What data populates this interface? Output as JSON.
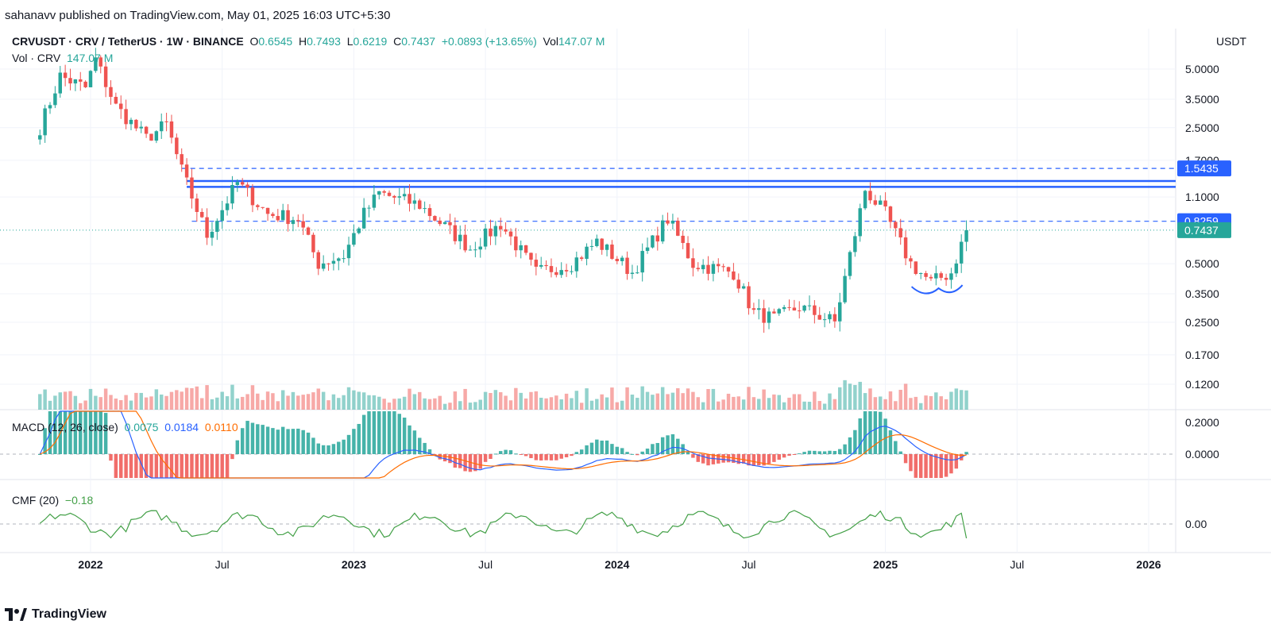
{
  "header": {
    "attribution": "sahanavv published on TradingView.com, May 01, 2025 16:03 UTC+5:30"
  },
  "legend": {
    "symbol": "CRVUSDT · CRV / TetherUS · 1W · BINANCE",
    "o_label": "O",
    "o_value": "0.6545",
    "h_label": "H",
    "h_value": "0.7493",
    "l_label": "L",
    "l_value": "0.6219",
    "c_label": "C",
    "c_value": "0.7437",
    "change": "+0.0893 (+13.65%)",
    "vol_label": "Vol",
    "vol_value": "147.07 M",
    "vol_row_label": "Vol · CRV",
    "vol_row_value": "147.07 M"
  },
  "macd_legend": {
    "label": "MACD (12, 26, close)",
    "hist": "0.0075",
    "macd": "0.0184",
    "signal": "0.0110"
  },
  "cmf_legend": {
    "label": "CMF (20)",
    "value": "−0.18"
  },
  "currency_button": "USDT",
  "footer": {
    "brand": "TradingView"
  },
  "colors": {
    "up": "#26a69a",
    "down": "#ef5350",
    "level": "#2962ff",
    "macd_line": "#2962ff",
    "signal_line": "#ff6d00",
    "cmf_line": "#43a047"
  },
  "chart_data": [
    {
      "type": "candlestick",
      "title": "CRVUSDT · CRV / TetherUS · 1W · BINANCE",
      "scale": "log",
      "price_ticks": [
        "5.0000",
        "3.5000",
        "2.5000",
        "1.7000",
        "1.1000",
        "0.5000",
        "0.3500",
        "0.2500",
        "0.1700",
        "0.1200"
      ],
      "x_ticks": [
        "2022",
        "Jul",
        "2023",
        "Jul",
        "2024",
        "Jul",
        "2025",
        "Jul",
        "2026"
      ],
      "price_labels": [
        {
          "text": "1.5435",
          "kind": "level"
        },
        {
          "text": "0.8259",
          "kind": "level"
        },
        {
          "text": "0.7437",
          "kind": "last"
        }
      ],
      "levels": {
        "dashed_upper": 1.5435,
        "resistance_band": [
          1.24,
          1.33
        ],
        "dashed_lower": 0.8259,
        "last_close": 0.7437
      },
      "annotation": "double-bottom curve near 0.35 (early 2025)",
      "anchors": [
        {
          "date": "2021-10-25",
          "close": 2.5
        },
        {
          "date": "2021-11-22",
          "close": 4.6
        },
        {
          "date": "2021-12-27",
          "close": 4.0
        },
        {
          "date": "2022-01-10",
          "close": 5.6
        },
        {
          "date": "2022-02-07",
          "close": 3.2
        },
        {
          "date": "2022-03-21",
          "close": 2.2
        },
        {
          "date": "2022-04-18",
          "close": 2.6
        },
        {
          "date": "2022-05-09",
          "close": 1.5
        },
        {
          "date": "2022-06-13",
          "close": 0.7
        },
        {
          "date": "2022-07-25",
          "close": 1.3
        },
        {
          "date": "2022-09-05",
          "close": 0.9
        },
        {
          "date": "2022-10-17",
          "close": 0.85
        },
        {
          "date": "2022-11-14",
          "close": 0.5
        },
        {
          "date": "2022-12-19",
          "close": 0.55
        },
        {
          "date": "2023-01-16",
          "close": 0.9
        },
        {
          "date": "2023-02-06",
          "close": 1.15
        },
        {
          "date": "2023-04-03",
          "close": 1.0
        },
        {
          "date": "2023-06-12",
          "close": 0.6
        },
        {
          "date": "2023-07-24",
          "close": 0.8
        },
        {
          "date": "2023-09-11",
          "close": 0.45
        },
        {
          "date": "2023-10-30",
          "close": 0.5
        },
        {
          "date": "2023-12-04",
          "close": 0.65
        },
        {
          "date": "2024-01-22",
          "close": 0.45
        },
        {
          "date": "2024-03-11",
          "close": 0.85
        },
        {
          "date": "2024-04-15",
          "close": 0.5
        },
        {
          "date": "2024-06-10",
          "close": 0.45
        },
        {
          "date": "2024-07-08",
          "close": 0.28
        },
        {
          "date": "2024-08-05",
          "close": 0.26
        },
        {
          "date": "2024-09-09",
          "close": 0.3
        },
        {
          "date": "2024-10-28",
          "close": 0.25
        },
        {
          "date": "2024-11-18",
          "close": 0.55
        },
        {
          "date": "2024-12-09",
          "close": 1.2
        },
        {
          "date": "2025-01-06",
          "close": 0.9
        },
        {
          "date": "2025-02-10",
          "close": 0.5
        },
        {
          "date": "2025-03-10",
          "close": 0.4
        },
        {
          "date": "2025-04-07",
          "close": 0.45
        },
        {
          "date": "2025-04-28",
          "close": 0.7437
        }
      ]
    },
    {
      "type": "bar",
      "title": "Vol · CRV",
      "last_value": "147.07 M"
    },
    {
      "type": "line",
      "title": "MACD (12, 26, close)",
      "y_ticks": [
        "0.2000",
        "0.0000"
      ],
      "series": [
        {
          "name": "Histogram",
          "last": 0.0075
        },
        {
          "name": "MACD",
          "last": 0.0184
        },
        {
          "name": "Signal",
          "last": 0.011
        }
      ]
    },
    {
      "type": "line",
      "title": "CMF (20)",
      "y_ticks": [
        "0.00"
      ],
      "series": [
        {
          "name": "CMF",
          "last": -0.18
        }
      ]
    }
  ]
}
